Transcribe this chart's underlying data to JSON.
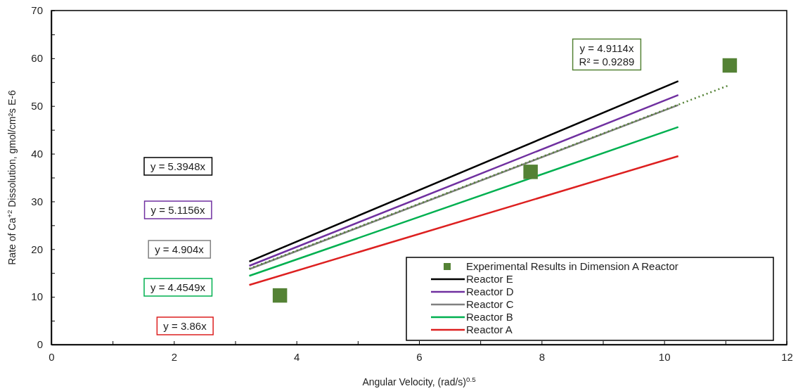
{
  "chart_data": {
    "type": "line",
    "xlabel": "Angular Velocity, (rad/s)$^{0.5}$",
    "ylabel": "Rate of Ca$^{+2}$ Dissolution, gmol/cm²s E-6",
    "xlim": [
      0,
      12
    ],
    "ylim": [
      0,
      70
    ],
    "xticks": [
      0,
      {
        "value": 1,
        "label": null
      },
      2,
      {
        "value": 3,
        "label": null
      },
      4,
      {
        "value": 5,
        "label": null
      },
      6,
      {
        "value": 7,
        "label": null
      },
      8,
      {
        "value": 9,
        "label": null
      },
      10,
      {
        "value": 11,
        "label": null
      },
      12
    ],
    "yticks": [
      0,
      {
        "value": 5,
        "label": null
      },
      10,
      {
        "value": 15,
        "label": null
      },
      20,
      {
        "value": 25,
        "label": null
      },
      30,
      {
        "value": 35,
        "label": null
      },
      40,
      {
        "value": 45,
        "label": null
      },
      50,
      {
        "value": 55,
        "label": null
      },
      60,
      {
        "value": 65,
        "label": null
      },
      70
    ],
    "grid": false,
    "legend": "bottom right",
    "series": [
      {
        "name": "Experimental Results in Dimension A Reactor",
        "type": "scatter",
        "marker": "square",
        "color": "#548235",
        "x": [
          3.73,
          7.82,
          11.07
        ],
        "values": [
          10.3,
          36.2,
          58.5
        ]
      },
      {
        "name": "Reactor E",
        "color": "#000000",
        "x": [
          3.23,
          10.23
        ],
        "values": [
          17.4,
          55.2
        ]
      },
      {
        "name": "Reactor D",
        "color": "#7030a0",
        "x": [
          3.23,
          10.23
        ],
        "values": [
          16.5,
          52.3
        ]
      },
      {
        "name": "Reactor C",
        "color": "#808080",
        "x": [
          3.23,
          10.23
        ],
        "values": [
          15.8,
          50.2
        ]
      },
      {
        "name": "Reactor B",
        "color": "#00b050",
        "x": [
          3.23,
          10.23
        ],
        "values": [
          14.4,
          45.6
        ]
      },
      {
        "name": "Reactor A",
        "color": "#dd2020",
        "x": [
          3.23,
          10.23
        ],
        "values": [
          12.5,
          39.5
        ]
      },
      {
        "color": "#548235",
        "line_style": "dotted",
        "x": [
          3.23,
          11.07
        ],
        "values": [
          15.9,
          54.4
        ]
      }
    ],
    "annotations": [
      "y = 5.3948x",
      "y = 5.1156x",
      "y = 4.904x",
      "y = 4.4549x",
      "y = 3.86x",
      "y = 4.9114x\nR² = 0.9289"
    ]
  }
}
